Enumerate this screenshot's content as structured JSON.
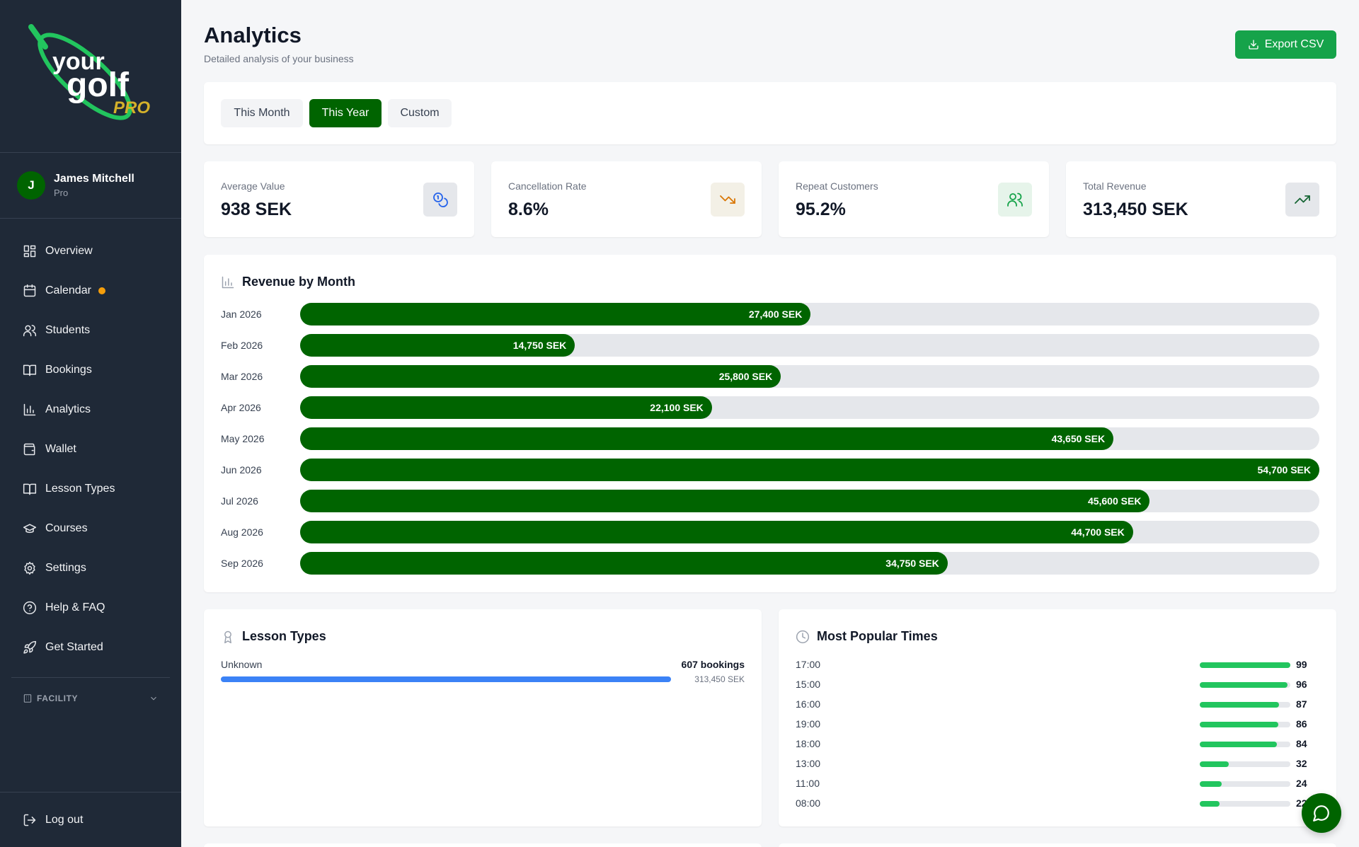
{
  "brand": {
    "logo_text_top": "your",
    "logo_text_main": "golf",
    "logo_text_tag": "PRO"
  },
  "user": {
    "initial": "J",
    "name": "James Mitchell",
    "role": "Pro"
  },
  "sidebar": {
    "items": [
      {
        "label": "Overview",
        "icon": "grid-icon"
      },
      {
        "label": "Calendar",
        "icon": "calendar-icon"
      },
      {
        "label": "Students",
        "icon": "users-icon"
      },
      {
        "label": "Bookings",
        "icon": "book-icon"
      },
      {
        "label": "Analytics",
        "icon": "bar-chart-icon"
      },
      {
        "label": "Wallet",
        "icon": "wallet-icon"
      },
      {
        "label": "Lesson Types",
        "icon": "book-open-icon"
      },
      {
        "label": "Courses",
        "icon": "graduation-cap-icon"
      },
      {
        "label": "Settings",
        "icon": "gear-icon"
      },
      {
        "label": "Help & FAQ",
        "icon": "help-circle-icon"
      },
      {
        "label": "Get Started",
        "icon": "rocket-icon"
      }
    ],
    "facility_label": "FACILITY",
    "logout_label": "Log out"
  },
  "header": {
    "title": "Analytics",
    "subtitle": "Detailed analysis of your business",
    "export_label": "Export CSV"
  },
  "filters": {
    "this_month": "This Month",
    "this_year": "This Year",
    "custom": "Custom",
    "selected": "This Year"
  },
  "stats": [
    {
      "label": "Average Value",
      "value": "938 SEK",
      "icon": "coins-icon",
      "color": "#2563eb"
    },
    {
      "label": "Cancellation Rate",
      "value": "8.6%",
      "icon": "trending-down-icon",
      "color": "#d97706"
    },
    {
      "label": "Repeat Customers",
      "value": "95.2%",
      "icon": "users-icon",
      "color": "#16a34a"
    },
    {
      "label": "Total Revenue",
      "value": "313,450 SEK",
      "icon": "trending-up-icon",
      "color": "#166534"
    }
  ],
  "revenue": {
    "title": "Revenue by Month",
    "chart_data": {
      "type": "bar",
      "orientation": "horizontal",
      "title": "Revenue by Month",
      "categories": [
        "Jan 2026",
        "Feb 2026",
        "Mar 2026",
        "Apr 2026",
        "May 2026",
        "Jun 2026",
        "Jul 2026",
        "Aug 2026",
        "Sep 2026"
      ],
      "values": [
        27400,
        14750,
        25800,
        22100,
        43650,
        54700,
        45600,
        44700,
        34750
      ],
      "value_labels": [
        "27,400 SEK",
        "14,750 SEK",
        "25,800 SEK",
        "22,100 SEK",
        "43,650 SEK",
        "54,700 SEK",
        "45,600 SEK",
        "44,700 SEK",
        "34,750 SEK"
      ],
      "xlim": [
        0,
        54700
      ],
      "color": "#006400"
    }
  },
  "lesson_types": {
    "title": "Lesson Types",
    "items": [
      {
        "name": "Unknown",
        "bookings": "607 bookings",
        "revenue": "313,450 SEK",
        "fraction": 1.0
      }
    ]
  },
  "popular_times": {
    "title": "Most Popular Times",
    "chart_data": {
      "type": "bar",
      "orientation": "horizontal",
      "title": "Most Popular Times",
      "categories": [
        "17:00",
        "15:00",
        "16:00",
        "19:00",
        "18:00",
        "13:00",
        "11:00",
        "08:00"
      ],
      "values": [
        99,
        96,
        87,
        86,
        84,
        32,
        24,
        22
      ],
      "xlim": [
        0,
        99
      ],
      "color": "#22c55e"
    }
  }
}
